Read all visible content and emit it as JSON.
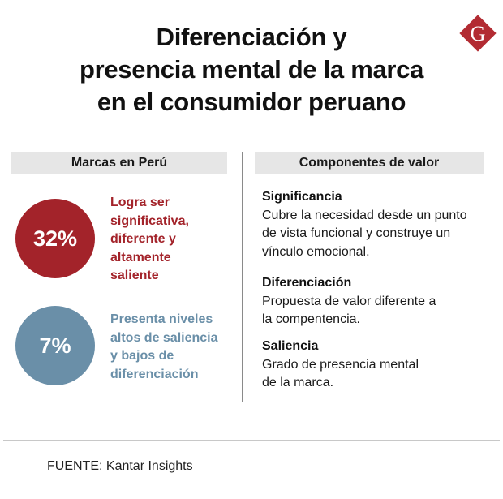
{
  "title": {
    "line1": "Diferenciación y",
    "line2": "presencia mental de la marca",
    "line3": "en el consumidor peruano"
  },
  "logo": {
    "letter": "G",
    "icon": "g-diamond-logo",
    "color": "#b22b32"
  },
  "left": {
    "header": "Marcas en Perú",
    "items": [
      {
        "value": "32%",
        "color": "#a3232a",
        "lines": [
          "Logra ser",
          "significativa,",
          "diferente y",
          "altamente",
          "saliente"
        ]
      },
      {
        "value": "7%",
        "color": "#6a8fa8",
        "lines": [
          "Presenta niveles",
          "altos de saliencia",
          "y bajos de",
          "diferenciación"
        ]
      }
    ]
  },
  "right": {
    "header": "Componentes de valor",
    "items": [
      {
        "title": "Significancia",
        "lines": [
          "Cubre la necesidad desde un punto",
          "de vista funcional y construye un",
          "vínculo emocional."
        ]
      },
      {
        "title": "Diferenciación",
        "lines": [
          "Propuesta de valor diferente a",
          "la compentencia."
        ]
      },
      {
        "title": "Saliencia",
        "lines": [
          "Grado de presencia mental",
          "de la marca."
        ]
      }
    ]
  },
  "source": "FUENTE: Kantar Insights"
}
